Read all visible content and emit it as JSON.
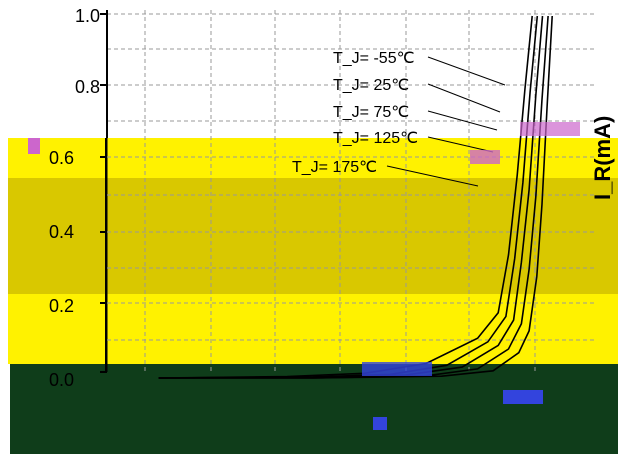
{
  "chart_data": {
    "type": "line",
    "title": "",
    "xlabel": "",
    "ylabel": "I_R(mA)",
    "ylim": [
      0.0,
      1.0
    ],
    "yticks": [
      "0.0",
      "0.2",
      "0.4",
      "0.6",
      "0.8",
      "1.0"
    ],
    "grid": true,
    "series": [
      {
        "name": "T_J= -55℃",
        "x": [
          0.1,
          0.4,
          0.65,
          0.75,
          0.8,
          0.82,
          0.835,
          0.845,
          0.855,
          0.865
        ],
        "y": [
          0.0,
          0.0,
          0.005,
          0.02,
          0.07,
          0.13,
          0.28,
          0.48,
          0.75,
          1.0
        ]
      },
      {
        "name": "T_J= 25℃",
        "x": [
          0.1,
          0.4,
          0.62,
          0.72,
          0.78,
          0.805,
          0.82,
          0.833,
          0.845,
          0.857
        ],
        "y": [
          0.0,
          0.0,
          0.006,
          0.025,
          0.08,
          0.15,
          0.3,
          0.5,
          0.77,
          1.0
        ]
      },
      {
        "name": "T_J= 75℃",
        "x": [
          0.1,
          0.4,
          0.58,
          0.69,
          0.76,
          0.79,
          0.805,
          0.82,
          0.833,
          0.846
        ],
        "y": [
          0.0,
          0.002,
          0.008,
          0.03,
          0.09,
          0.16,
          0.32,
          0.52,
          0.78,
          1.0
        ]
      },
      {
        "name": "T_J= 125℃",
        "x": [
          0.1,
          0.4,
          0.55,
          0.66,
          0.74,
          0.775,
          0.792,
          0.808,
          0.822,
          0.836
        ],
        "y": [
          0.0,
          0.003,
          0.01,
          0.035,
          0.1,
          0.17,
          0.33,
          0.54,
          0.79,
          1.0
        ]
      },
      {
        "name": "T_J= 175℃",
        "x": [
          0.1,
          0.35,
          0.5,
          0.62,
          0.72,
          0.76,
          0.78,
          0.797,
          0.812,
          0.826
        ],
        "y": [
          0.0,
          0.004,
          0.013,
          0.04,
          0.11,
          0.18,
          0.34,
          0.56,
          0.8,
          1.0
        ]
      }
    ]
  },
  "colors": {
    "background": "#ffffff",
    "yellow_band": "#fff200",
    "olive_band": "#d9c800",
    "dark_band": "#0f3d1a",
    "grid_dashed": "#bbbbbb",
    "grid_band": "#6e6a00",
    "curve": "#000000"
  }
}
